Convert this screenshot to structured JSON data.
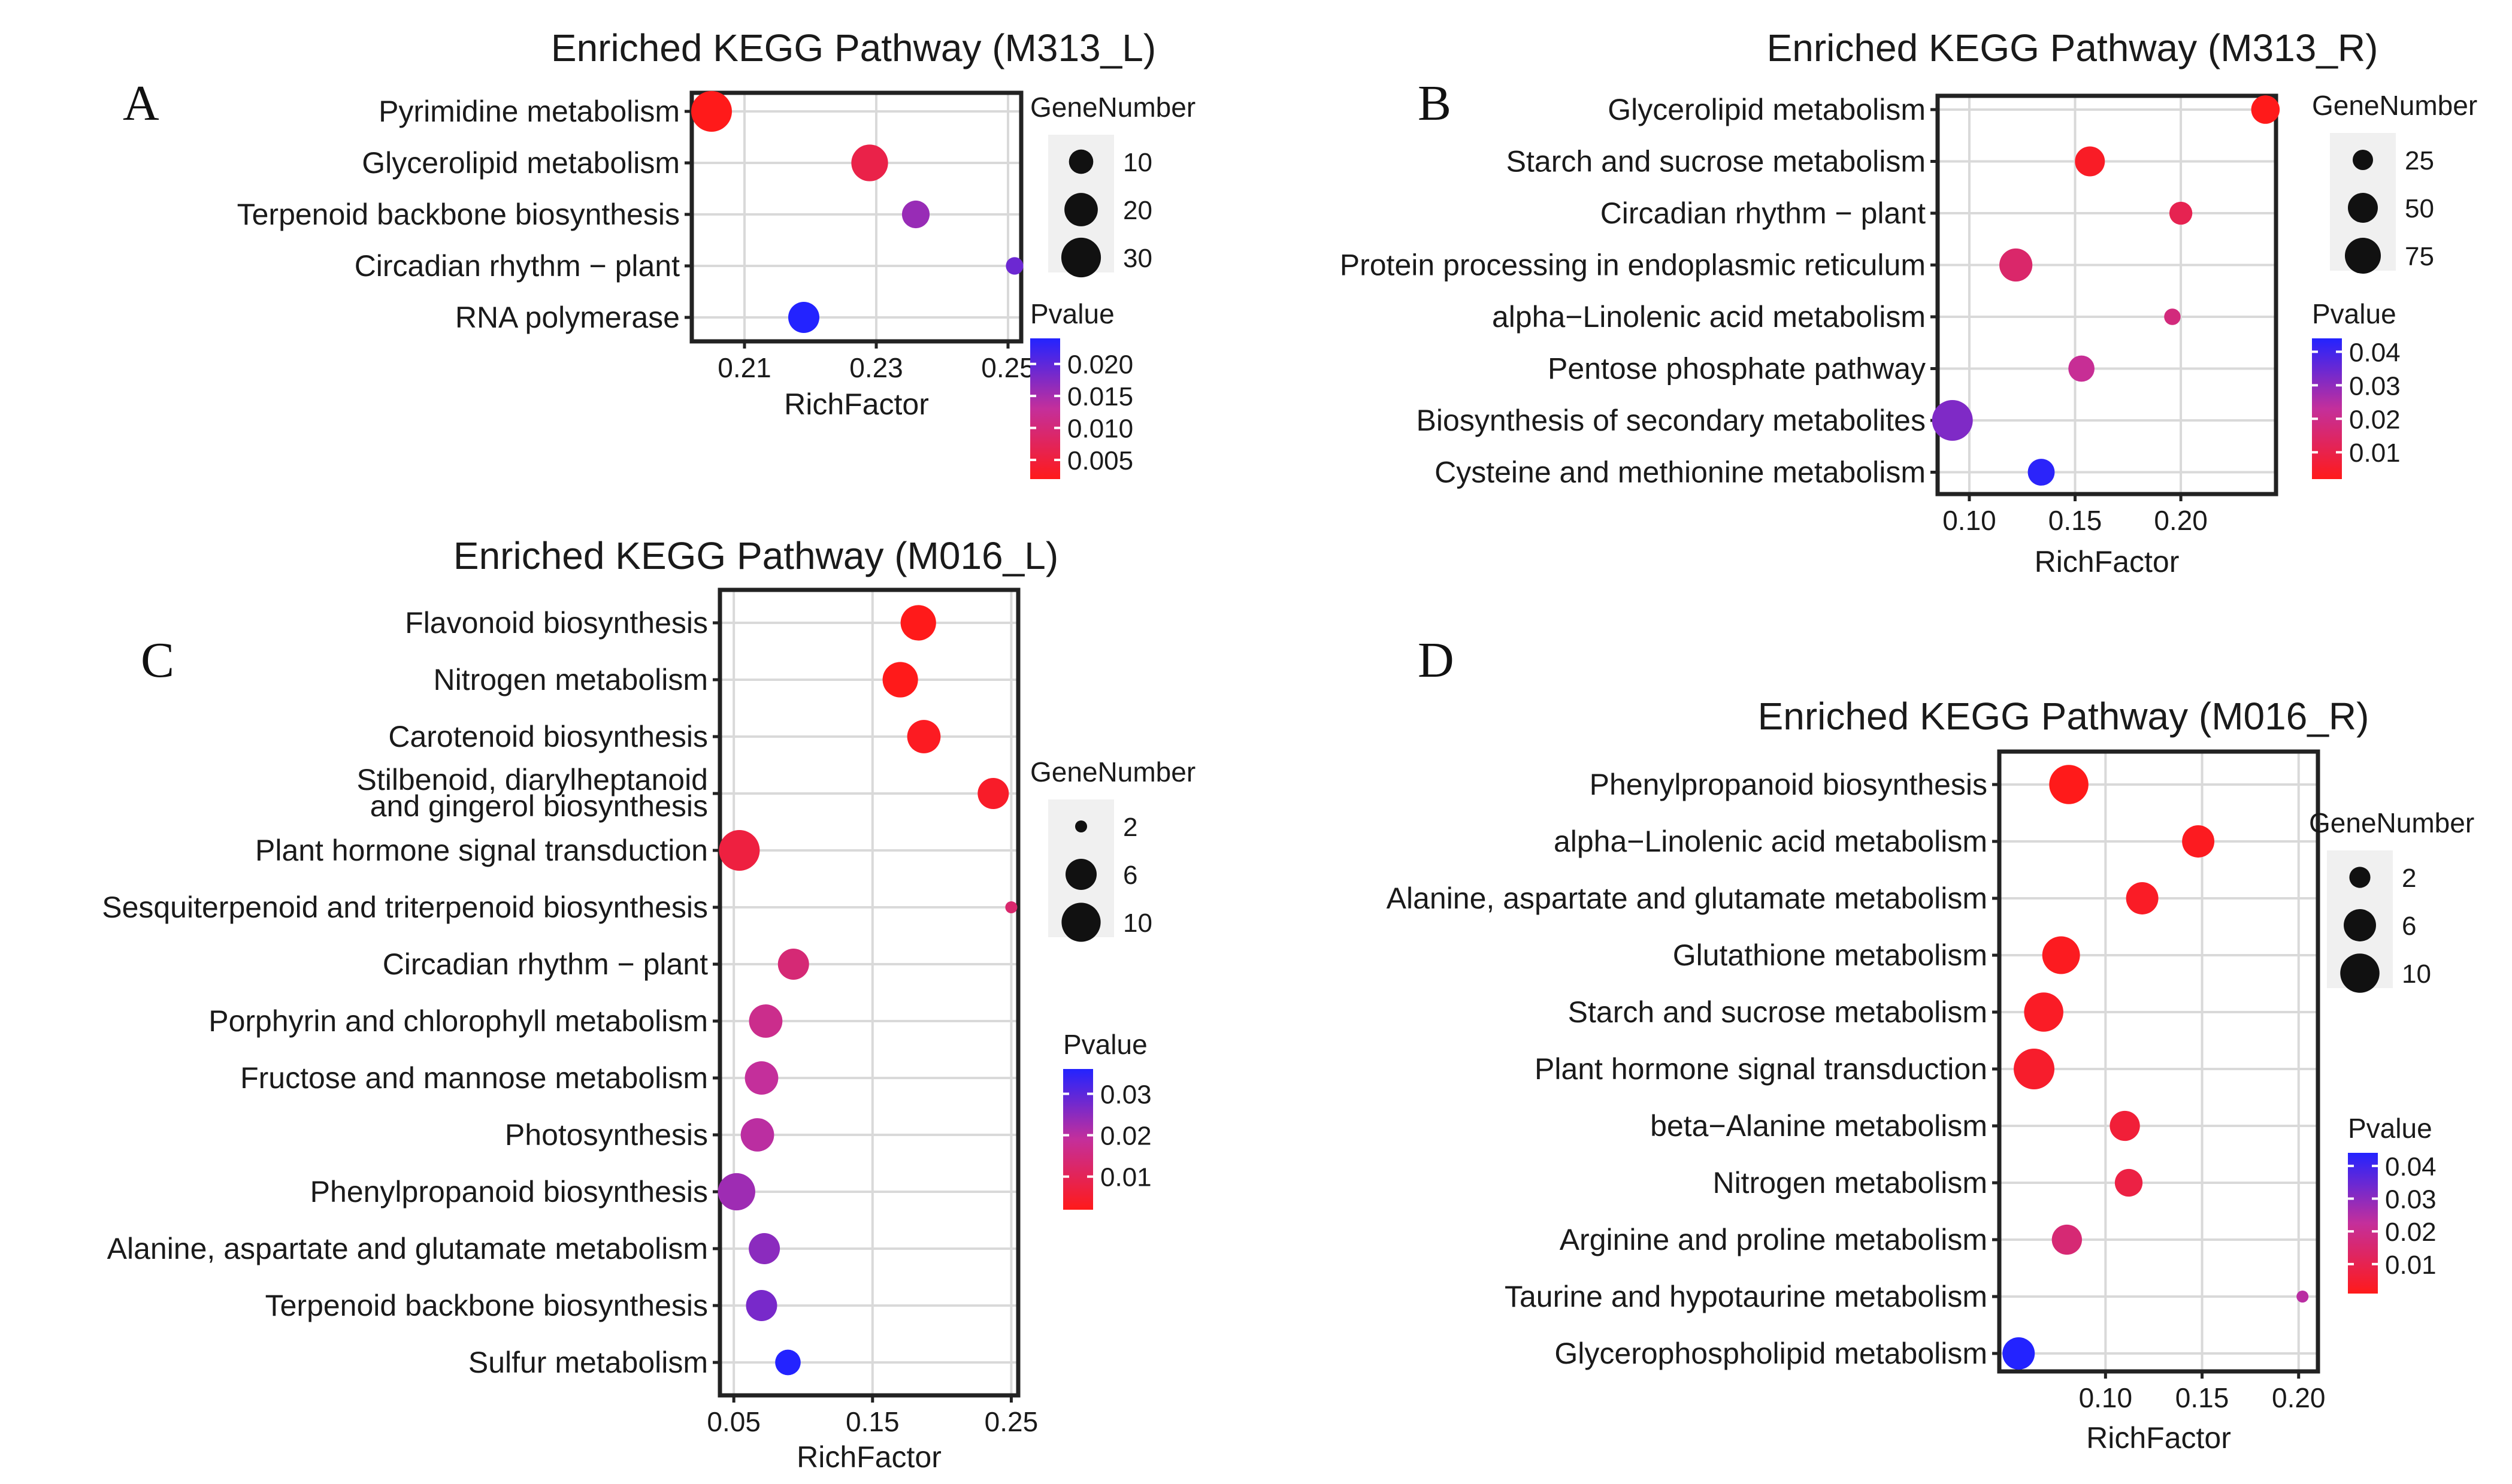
{
  "figure_labels": [
    "A",
    "B",
    "C",
    "D"
  ],
  "chart_data": [
    {
      "panel": "A",
      "type": "scatter",
      "title": "Enriched KEGG Pathway (M313_L)",
      "xlabel": "RichFactor",
      "xlim": [
        0.202,
        0.252
      ],
      "xticks": [
        0.21,
        0.23,
        0.25
      ],
      "xtick_labels": [
        "0.21",
        "0.23",
        "0.25"
      ],
      "categories": [
        "Pyrimidine metabolism",
        "Glycerolipid metabolism",
        "Terpenoid backbone biosynthesis",
        "Circadian rhythm − plant",
        "RNA polymerase"
      ],
      "points": [
        {
          "pathway": "Pyrimidine metabolism",
          "rich_factor": 0.205,
          "gene_number": 32,
          "pvalue": 0.002
        },
        {
          "pathway": "Glycerolipid metabolism",
          "rich_factor": 0.229,
          "gene_number": 25,
          "pvalue": 0.006
        },
        {
          "pathway": "Terpenoid backbone biosynthesis",
          "rich_factor": 0.236,
          "gene_number": 13,
          "pvalue": 0.016
        },
        {
          "pathway": "Circadian rhythm − plant",
          "rich_factor": 0.251,
          "gene_number": 6,
          "pvalue": 0.019
        },
        {
          "pathway": "RNA polymerase",
          "rich_factor": 0.219,
          "gene_number": 17,
          "pvalue": 0.024
        }
      ],
      "size_legend": {
        "title": "GeneNumber",
        "values": [
          10,
          20,
          30
        ],
        "labels": [
          "10",
          "20",
          "30"
        ],
        "range": [
          5,
          32
        ]
      },
      "color_legend": {
        "title": "Pvalue",
        "range": [
          0.002,
          0.024
        ],
        "ticks": [
          0.02,
          0.015,
          0.01,
          0.005
        ],
        "labels": [
          "0.020",
          "0.015",
          "0.010",
          "0.005"
        ],
        "low_color": "#ff1a1a",
        "mid_color": "#c42f9b",
        "high_color": "#2323ff"
      }
    },
    {
      "panel": "B",
      "type": "scatter",
      "title": "Enriched KEGG Pathway (M313_R)",
      "xlabel": "RichFactor",
      "xlim": [
        0.085,
        0.245
      ],
      "xticks": [
        0.1,
        0.15,
        0.2
      ],
      "xtick_labels": [
        "0.10",
        "0.15",
        "0.20"
      ],
      "categories": [
        "Glycerolipid metabolism",
        "Starch and sucrose metabolism",
        "Circadian rhythm − plant",
        "Protein processing in endoplasmic reticulum",
        "alpha−Linolenic acid metabolism",
        "Pentose phosphate pathway",
        "Biosynthesis of secondary metabolites",
        "Cysteine and methionine metabolism"
      ],
      "points": [
        {
          "pathway": "Glycerolipid metabolism",
          "rich_factor": 0.24,
          "gene_number": 45,
          "pvalue": 0.002
        },
        {
          "pathway": "Starch and sucrose metabolism",
          "rich_factor": 0.157,
          "gene_number": 50,
          "pvalue": 0.004
        },
        {
          "pathway": "Circadian rhythm − plant",
          "rich_factor": 0.2,
          "gene_number": 30,
          "pvalue": 0.011
        },
        {
          "pathway": "Protein processing in endoplasmic reticulum",
          "rich_factor": 0.122,
          "gene_number": 62,
          "pvalue": 0.015
        },
        {
          "pathway": "alpha−Linolenic acid metabolism",
          "rich_factor": 0.196,
          "gene_number": 20,
          "pvalue": 0.018
        },
        {
          "pathway": "Pentose phosphate pathway",
          "rich_factor": 0.153,
          "gene_number": 38,
          "pvalue": 0.022
        },
        {
          "pathway": "Biosynthesis of secondary metabolites",
          "rich_factor": 0.092,
          "gene_number": 100,
          "pvalue": 0.032
        },
        {
          "pathway": "Cysteine and methionine metabolism",
          "rich_factor": 0.134,
          "gene_number": 40,
          "pvalue": 0.043
        }
      ],
      "size_legend": {
        "title": "GeneNumber",
        "values": [
          25,
          50,
          75
        ],
        "labels": [
          "25",
          "50",
          "75"
        ],
        "range": [
          18,
          100
        ]
      },
      "color_legend": {
        "title": "Pvalue",
        "range": [
          0.002,
          0.044
        ],
        "ticks": [
          0.04,
          0.03,
          0.02,
          0.01
        ],
        "labels": [
          "0.04",
          "0.03",
          "0.02",
          "0.01"
        ],
        "low_color": "#ff1a1a",
        "mid_color": "#c42f9b",
        "high_color": "#2323ff"
      }
    },
    {
      "panel": "C",
      "type": "scatter",
      "title": "Enriched KEGG Pathway (M016_L)",
      "xlabel": "RichFactor",
      "xlim": [
        0.04,
        0.255
      ],
      "xticks": [
        0.05,
        0.15,
        0.25
      ],
      "xtick_labels": [
        "0.05",
        "0.15",
        "0.25"
      ],
      "categories": [
        "Flavonoid biosynthesis",
        "Nitrogen metabolism",
        "Carotenoid biosynthesis",
        "Stilbenoid, diarylheptanoid|and gingerol biosynthesis",
        "Plant hormone signal transduction",
        "Sesquiterpenoid and triterpenoid biosynthesis",
        "Circadian rhythm − plant",
        "Porphyrin and chlorophyll metabolism",
        "Fructose and mannose metabolism",
        "Photosynthesis",
        "Phenylpropanoid biosynthesis",
        "Alanine, aspartate and glutamate metabolism",
        "Terpenoid backbone biosynthesis",
        "Sulfur metabolism"
      ],
      "points": [
        {
          "pathway": "Flavonoid biosynthesis",
          "rich_factor": 0.183,
          "gene_number": 8,
          "pvalue": 0.002
        },
        {
          "pathway": "Nitrogen metabolism",
          "rich_factor": 0.17,
          "gene_number": 8,
          "pvalue": 0.002
        },
        {
          "pathway": "Carotenoid biosynthesis",
          "rich_factor": 0.187,
          "gene_number": 7,
          "pvalue": 0.003
        },
        {
          "pathway": "Stilbenoid, diarylheptanoid and gingerol biosynthesis",
          "rich_factor": 0.237,
          "gene_number": 6,
          "pvalue": 0.004
        },
        {
          "pathway": "Plant hormone signal transduction",
          "rich_factor": 0.054,
          "gene_number": 11,
          "pvalue": 0.007
        },
        {
          "pathway": "Sesquiterpenoid and triterpenoid biosynthesis",
          "rich_factor": 0.25,
          "gene_number": 2,
          "pvalue": 0.013
        },
        {
          "pathway": "Circadian rhythm − plant",
          "rich_factor": 0.093,
          "gene_number": 6,
          "pvalue": 0.014
        },
        {
          "pathway": "Porphyrin and chlorophyll metabolism",
          "rich_factor": 0.073,
          "gene_number": 7,
          "pvalue": 0.017
        },
        {
          "pathway": "Fructose and mannose metabolism",
          "rich_factor": 0.07,
          "gene_number": 7,
          "pvalue": 0.019
        },
        {
          "pathway": "Photosynthesis",
          "rich_factor": 0.067,
          "gene_number": 7,
          "pvalue": 0.02
        },
        {
          "pathway": "Phenylpropanoid biosynthesis",
          "rich_factor": 0.052,
          "gene_number": 9,
          "pvalue": 0.023
        },
        {
          "pathway": "Alanine, aspartate and glutamate metabolism",
          "rich_factor": 0.072,
          "gene_number": 6,
          "pvalue": 0.025
        },
        {
          "pathway": "Terpenoid backbone biosynthesis",
          "rich_factor": 0.07,
          "gene_number": 6,
          "pvalue": 0.027
        },
        {
          "pathway": "Sulfur metabolism",
          "rich_factor": 0.089,
          "gene_number": 4,
          "pvalue": 0.036
        }
      ],
      "size_legend": {
        "title": "GeneNumber",
        "values": [
          2,
          6,
          10
        ],
        "labels": [
          "2",
          "6",
          "10"
        ],
        "range": [
          2,
          11
        ]
      },
      "color_legend": {
        "title": "Pvalue",
        "range": [
          0.002,
          0.036
        ],
        "ticks": [
          0.03,
          0.02,
          0.01
        ],
        "labels": [
          "0.03",
          "0.02",
          "0.01"
        ],
        "low_color": "#ff1a1a",
        "mid_color": "#c42f9b",
        "high_color": "#2323ff"
      }
    },
    {
      "panel": "D",
      "type": "scatter",
      "title": "Enriched KEGG Pathway (M016_R)",
      "xlabel": "RichFactor",
      "xlim": [
        0.045,
        0.21
      ],
      "xticks": [
        0.1,
        0.15,
        0.2
      ],
      "xtick_labels": [
        "0.10",
        "0.15",
        "0.20"
      ],
      "categories": [
        "Phenylpropanoid biosynthesis",
        "alpha−Linolenic acid metabolism",
        "Alanine, aspartate and glutamate metabolism",
        "Glutathione metabolism",
        "Starch and sucrose metabolism",
        "Plant hormone signal transduction",
        "beta−Alanine metabolism",
        "Nitrogen metabolism",
        "Arginine and proline metabolism",
        "Taurine and hypotaurine metabolism",
        "Glycerophospholipid metabolism"
      ],
      "points": [
        {
          "pathway": "Phenylpropanoid biosynthesis",
          "rich_factor": 0.081,
          "gene_number": 10,
          "pvalue": 0.001
        },
        {
          "pathway": "alpha−Linolenic acid metabolism",
          "rich_factor": 0.148,
          "gene_number": 6,
          "pvalue": 0.002
        },
        {
          "pathway": "Alanine, aspartate and glutamate metabolism",
          "rich_factor": 0.119,
          "gene_number": 6,
          "pvalue": 0.003
        },
        {
          "pathway": "Glutathione metabolism",
          "rich_factor": 0.077,
          "gene_number": 9,
          "pvalue": 0.002
        },
        {
          "pathway": "Starch and sucrose metabolism",
          "rich_factor": 0.068,
          "gene_number": 10,
          "pvalue": 0.003
        },
        {
          "pathway": "Plant hormone signal transduction",
          "rich_factor": 0.063,
          "gene_number": 11,
          "pvalue": 0.004
        },
        {
          "pathway": "beta−Alanine metabolism",
          "rich_factor": 0.11,
          "gene_number": 5,
          "pvalue": 0.006
        },
        {
          "pathway": "Nitrogen metabolism",
          "rich_factor": 0.112,
          "gene_number": 4,
          "pvalue": 0.008
        },
        {
          "pathway": "Arginine and proline metabolism",
          "rich_factor": 0.08,
          "gene_number": 5,
          "pvalue": 0.016
        },
        {
          "pathway": "Taurine and hypotaurine metabolism",
          "rich_factor": 0.202,
          "gene_number": 1,
          "pvalue": 0.024
        },
        {
          "pathway": "Glycerophospholipid metabolism",
          "rich_factor": 0.055,
          "gene_number": 6,
          "pvalue": 0.044
        }
      ],
      "size_legend": {
        "title": "GeneNumber",
        "values": [
          2,
          6,
          10
        ],
        "labels": [
          "2",
          "6",
          "10"
        ],
        "range": [
          1,
          11
        ]
      },
      "color_legend": {
        "title": "Pvalue",
        "range": [
          0.001,
          0.044
        ],
        "ticks": [
          0.04,
          0.03,
          0.02,
          0.01
        ],
        "labels": [
          "0.04",
          "0.03",
          "0.02",
          "0.01"
        ],
        "low_color": "#ff1a1a",
        "mid_color": "#c42f9b",
        "high_color": "#2323ff"
      }
    }
  ]
}
